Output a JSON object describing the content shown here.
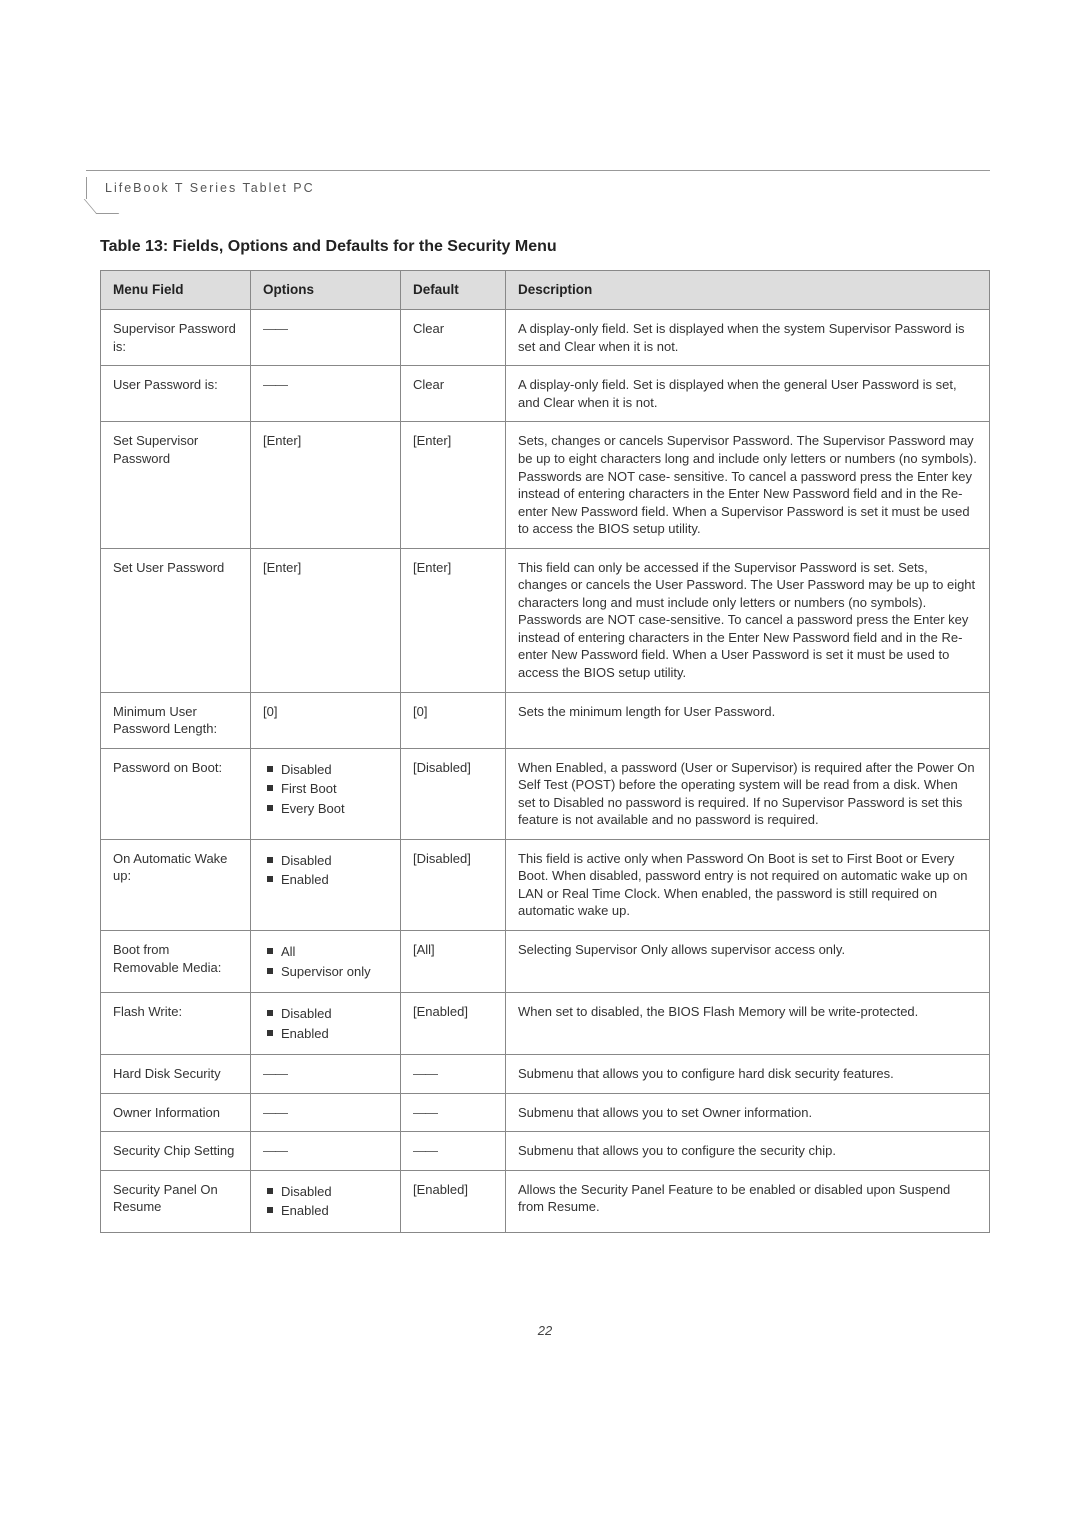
{
  "header": {
    "product_line": "LifeBook T Series Tablet PC"
  },
  "table": {
    "title": "Table 13: Fields, Options and Defaults for the Security Menu",
    "columns": {
      "field": "Menu Field",
      "options": "Options",
      "default": "Default",
      "description": "Description"
    },
    "rows": [
      {
        "field": "Supervisor Password is:",
        "options_dash": "——",
        "default": "Clear",
        "description": "A display-only field. Set is displayed when the system Supervisor Password is set and Clear when it is not."
      },
      {
        "field": "User Password is:",
        "options_dash": "——",
        "default": "Clear",
        "description": "A display-only field. Set is displayed when the general User Password is set, and Clear when it is not."
      },
      {
        "field": "Set Supervisor Password",
        "options_text": "[Enter]",
        "default": "[Enter]",
        "description": "Sets, changes or cancels Supervisor Password. The Supervisor Password may be up to eight characters long and include only letters or numbers (no symbols). Passwords are NOT case- sensitive. To cancel a password press the Enter key instead of entering characters in the Enter New Password field and in the Re-enter New Password field. When a Supervisor Password is set it must be used to access the BIOS setup utility."
      },
      {
        "field": "Set User Password",
        "options_text": "[Enter]",
        "default": "[Enter]",
        "description": "This field can only be accessed if the Supervisor Password is set. Sets, changes or cancels the User Password. The User Password may be up to eight characters long and must include only letters or numbers (no symbols). Passwords are NOT case-sensitive. To cancel a password press the Enter key instead of entering characters in the Enter New Password field and in the Re-enter New Password field. When a User Password is set it must be used to access the BIOS setup utility."
      },
      {
        "field": "Minimum User Password Length:",
        "options_text": "[0]",
        "default": "[0]",
        "description": "Sets the minimum length for User Password."
      },
      {
        "field": "Password on Boot:",
        "options_list": [
          "Disabled",
          "First Boot",
          "Every Boot"
        ],
        "default": "[Disabled]",
        "description": "When Enabled, a password (User or Supervisor) is required after the Power On Self Test (POST) before the operating system will be read from a disk. When set to Disabled no password is required. If no Supervisor Password is set this feature is not available and no password is required."
      },
      {
        "field": "On Automatic Wake up:",
        "options_list": [
          "Disabled",
          "Enabled"
        ],
        "default": "[Disabled]",
        "description": "This field is active only when Password On Boot is set to First Boot or Every Boot. When disabled, password entry is not required on automatic wake up on LAN or Real Time Clock. When enabled, the password is still required on automatic wake up."
      },
      {
        "field": "Boot from Removable Media:",
        "options_list": [
          "All",
          "Supervisor only"
        ],
        "default": "[All]",
        "description": "Selecting Supervisor Only allows supervisor access only."
      },
      {
        "field": "Flash Write:",
        "options_list": [
          "Disabled",
          "Enabled"
        ],
        "default": "[Enabled]",
        "description": "When set to disabled, the BIOS Flash Memory will be write-protected."
      },
      {
        "field": "Hard Disk Security",
        "options_dash": "——",
        "default_dash": "——",
        "description": "Submenu that allows you to configure hard disk security features."
      },
      {
        "field": "Owner Information",
        "options_dash": "——",
        "default_dash": "——",
        "description": "Submenu that allows you to set Owner information."
      },
      {
        "field": "Security Chip Setting",
        "options_dash": "——",
        "default_dash": "——",
        "description": "Submenu that allows you to configure the security chip."
      },
      {
        "field": "Security Panel On Resume",
        "options_list": [
          "Disabled",
          "Enabled"
        ],
        "default": "[Enabled]",
        "description": "Allows the Security Panel Feature to be enabled or disabled upon Suspend from Resume."
      }
    ]
  },
  "footer": {
    "page_number": "22"
  }
}
